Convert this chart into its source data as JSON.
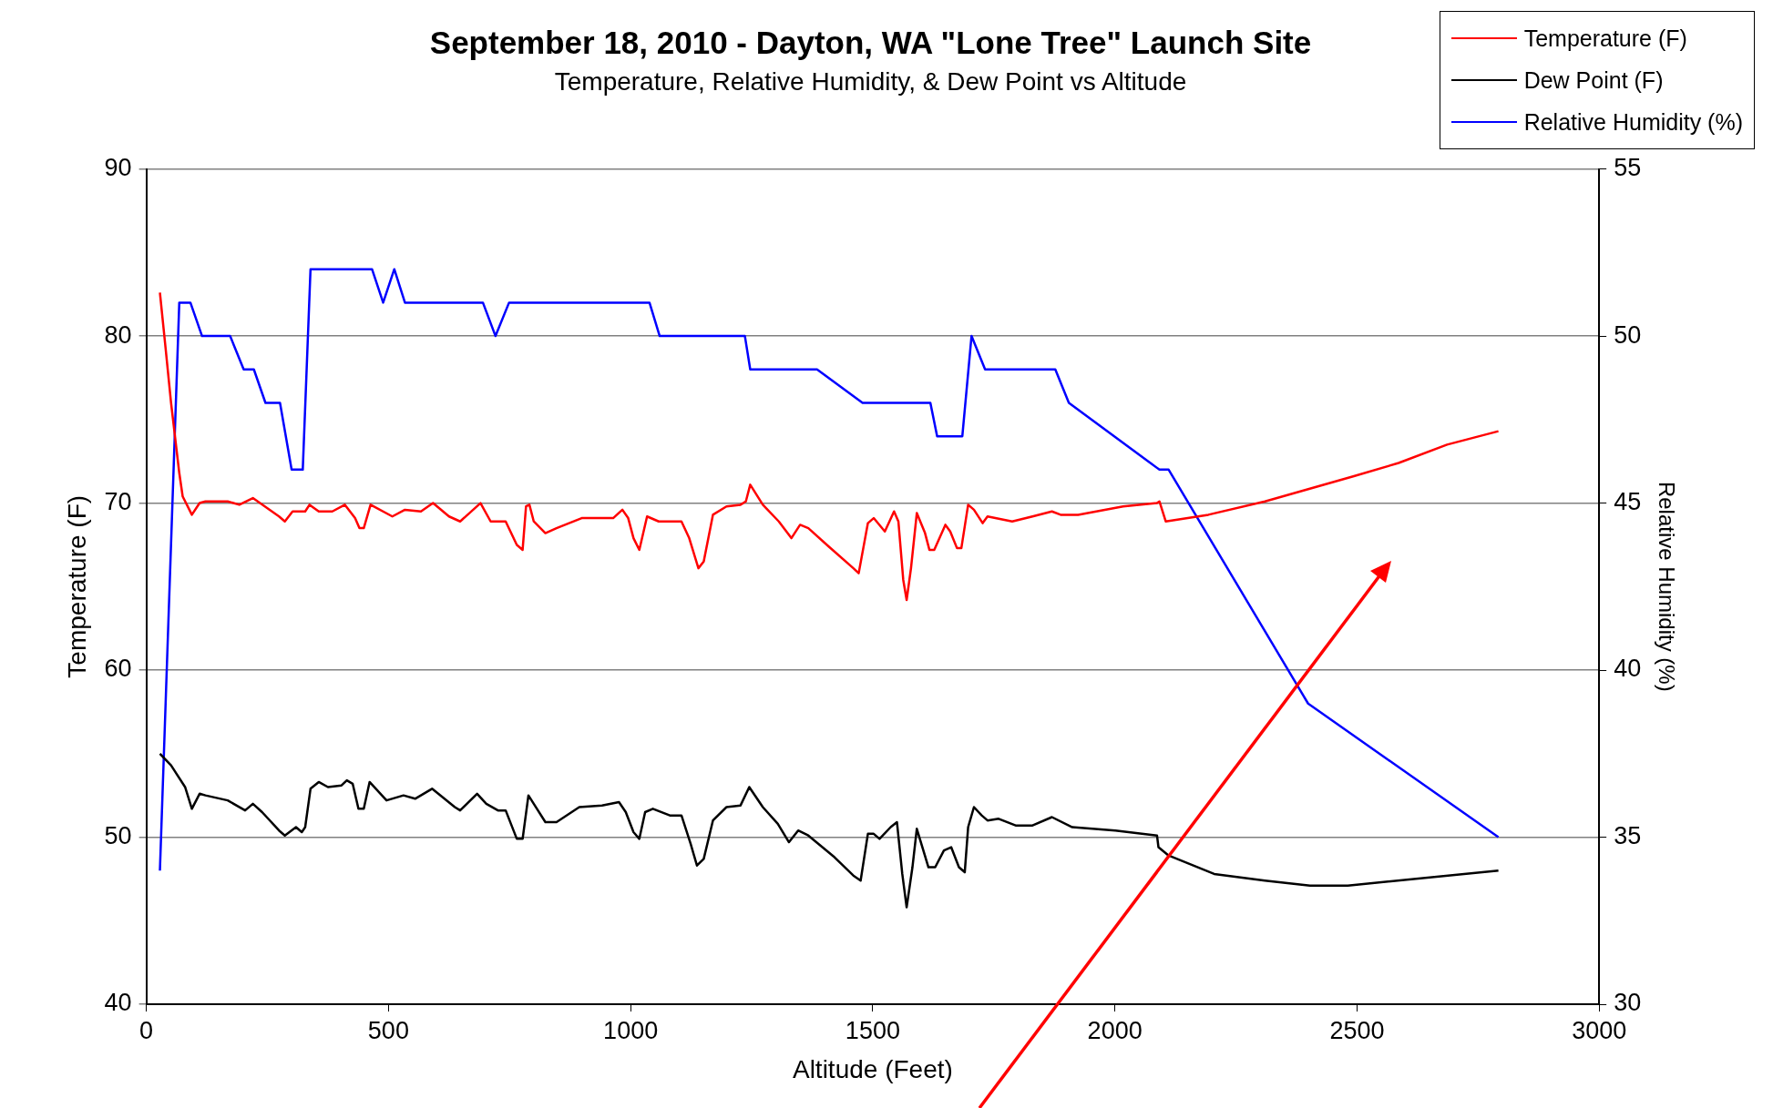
{
  "chart_data": {
    "type": "line",
    "title": "September 18, 2010 - Dayton, WA \"Lone Tree\" Launch Site",
    "subtitle": "Temperature, Relative Humidity, & Dew Point vs Altitude",
    "xlabel": "Altitude (Feet)",
    "ylabel": "Temperature (F)",
    "y2label": "Relative Humidity (%)",
    "xlim": [
      0,
      3000
    ],
    "xticks": [
      0,
      500,
      1000,
      1500,
      2000,
      2500,
      3000
    ],
    "ylim": [
      40,
      90
    ],
    "yticks": [
      40,
      50,
      60,
      70,
      80,
      90
    ],
    "y2lim": [
      30,
      55
    ],
    "y2ticks": [
      30,
      35,
      40,
      45,
      50,
      55
    ],
    "grid": "y",
    "legend": "top right",
    "marker": "none",
    "line_style": "solid",
    "series": [
      {
        "name": "Temperature (F)",
        "color": "#ff0000",
        "x": [
          28,
          40,
          51,
          68,
          75,
          94,
          110,
          122,
          168,
          192,
          220,
          274,
          286,
          302,
          328,
          337,
          356,
          384,
          410,
          431,
          440,
          449,
          463,
          508,
          534,
          567,
          592,
          625,
          648,
          690,
          711,
          742,
          765,
          777,
          784,
          791,
          800,
          824,
          847,
          899,
          964,
          983,
          995,
          1006,
          1018,
          1034,
          1058,
          1105,
          1121,
          1140,
          1151,
          1170,
          1198,
          1227,
          1238,
          1247,
          1273,
          1306,
          1332,
          1350,
          1367,
          1409,
          1460,
          1471,
          1490,
          1502,
          1525,
          1544,
          1553,
          1563,
          1570,
          1579,
          1591,
          1608,
          1617,
          1627,
          1650,
          1660,
          1674,
          1683,
          1697,
          1709,
          1727,
          1737,
          1788,
          1830,
          1870,
          1888,
          1924,
          2017,
          2087,
          2092,
          2105,
          2193,
          2310,
          2492,
          2586,
          2686,
          2792
        ],
        "values": [
          82.6,
          79.2,
          76,
          71.8,
          70.4,
          69.3,
          70,
          70.1,
          70.1,
          69.9,
          70.3,
          69.2,
          68.9,
          69.5,
          69.5,
          69.9,
          69.5,
          69.5,
          69.9,
          69.1,
          68.5,
          68.5,
          69.9,
          69.2,
          69.6,
          69.5,
          70,
          69.2,
          68.9,
          70,
          68.9,
          68.9,
          67.5,
          67.2,
          69.8,
          69.9,
          68.9,
          68.2,
          68.5,
          69.1,
          69.1,
          69.6,
          69.1,
          67.9,
          67.2,
          69.2,
          68.9,
          68.9,
          67.9,
          66.1,
          66.5,
          69.3,
          69.8,
          69.9,
          70.1,
          71.1,
          69.9,
          68.9,
          67.9,
          68.7,
          68.5,
          67.4,
          66.1,
          65.8,
          68.8,
          69.1,
          68.3,
          69.5,
          68.9,
          65.4,
          64.2,
          66.1,
          69.4,
          68.2,
          67.2,
          67.2,
          68.7,
          68.3,
          67.3,
          67.3,
          69.9,
          69.6,
          68.8,
          69.2,
          68.9,
          69.2,
          69.5,
          69.3,
          69.3,
          69.8,
          70,
          70.1,
          68.9,
          69.3,
          70.1,
          71.6,
          72.4,
          73.5,
          74.3
        ]
      },
      {
        "name": "Dew Point (F)",
        "color": "#000000",
        "x": [
          28,
          51,
          80,
          94,
          110,
          122,
          168,
          204,
          220,
          239,
          274,
          286,
          309,
          321,
          328,
          339,
          356,
          375,
          403,
          414,
          426,
          438,
          449,
          461,
          496,
          531,
          555,
          590,
          637,
          648,
          683,
          702,
          726,
          742,
          765,
          777,
          789,
          800,
          824,
          847,
          894,
          941,
          976,
          990,
          1006,
          1018,
          1030,
          1046,
          1081,
          1105,
          1124,
          1137,
          1151,
          1170,
          1198,
          1227,
          1245,
          1273,
          1304,
          1327,
          1346,
          1367,
          1421,
          1460,
          1475,
          1490,
          1502,
          1514,
          1537,
          1550,
          1561,
          1570,
          1582,
          1591,
          1615,
          1629,
          1647,
          1662,
          1678,
          1690,
          1697,
          1709,
          1725,
          1737,
          1760,
          1795,
          1830,
          1870,
          1912,
          2001,
          2087,
          2090,
          2111,
          2205,
          2310,
          2403,
          2481,
          2792
        ],
        "values": [
          55,
          54.3,
          53,
          51.7,
          52.6,
          52.5,
          52.2,
          51.6,
          52,
          51.5,
          50.4,
          50.1,
          50.6,
          50.3,
          50.6,
          52.9,
          53.3,
          53,
          53.1,
          53.4,
          53.2,
          51.7,
          51.7,
          53.3,
          52.2,
          52.5,
          52.3,
          52.9,
          51.8,
          51.6,
          52.6,
          52,
          51.6,
          51.6,
          49.9,
          49.9,
          52.5,
          52,
          50.9,
          50.9,
          51.8,
          51.9,
          52.1,
          51.5,
          50.3,
          49.9,
          51.5,
          51.7,
          51.3,
          51.3,
          49.6,
          48.3,
          48.7,
          51,
          51.8,
          51.9,
          53,
          51.8,
          50.8,
          49.7,
          50.4,
          50.1,
          48.8,
          47.7,
          47.4,
          50.2,
          50.2,
          49.9,
          50.6,
          50.9,
          47.8,
          45.8,
          48.2,
          50.5,
          48.2,
          48.2,
          49.2,
          49.4,
          48.2,
          47.9,
          50.6,
          51.8,
          51.3,
          51,
          51.1,
          50.7,
          50.7,
          51.2,
          50.6,
          50.4,
          50.1,
          49.4,
          48.9,
          47.8,
          47.4,
          47.1,
          47.1,
          48
        ]
      },
      {
        "name": "Relative Humidity (%)",
        "color": "#0000ff",
        "axis": "y2",
        "x": [
          28,
          68,
          91,
          115,
          173,
          201,
          222,
          246,
          276,
          300,
          323,
          339,
          466,
          489,
          512,
          534,
          695,
          721,
          749,
          1039,
          1060,
          1236,
          1247,
          1385,
          1479,
          1619,
          1633,
          1685,
          1704,
          1732,
          1877,
          1905,
          2092,
          2111,
          2399,
          2792
        ],
        "values": [
          34,
          51,
          51,
          50,
          50,
          49,
          49,
          48,
          48,
          46,
          46,
          52,
          52,
          51,
          52,
          51,
          51,
          50,
          51,
          51,
          50,
          50,
          49,
          49,
          48,
          48,
          47,
          47,
          50,
          49,
          49,
          48,
          46,
          46,
          39,
          35
        ]
      }
    ]
  }
}
